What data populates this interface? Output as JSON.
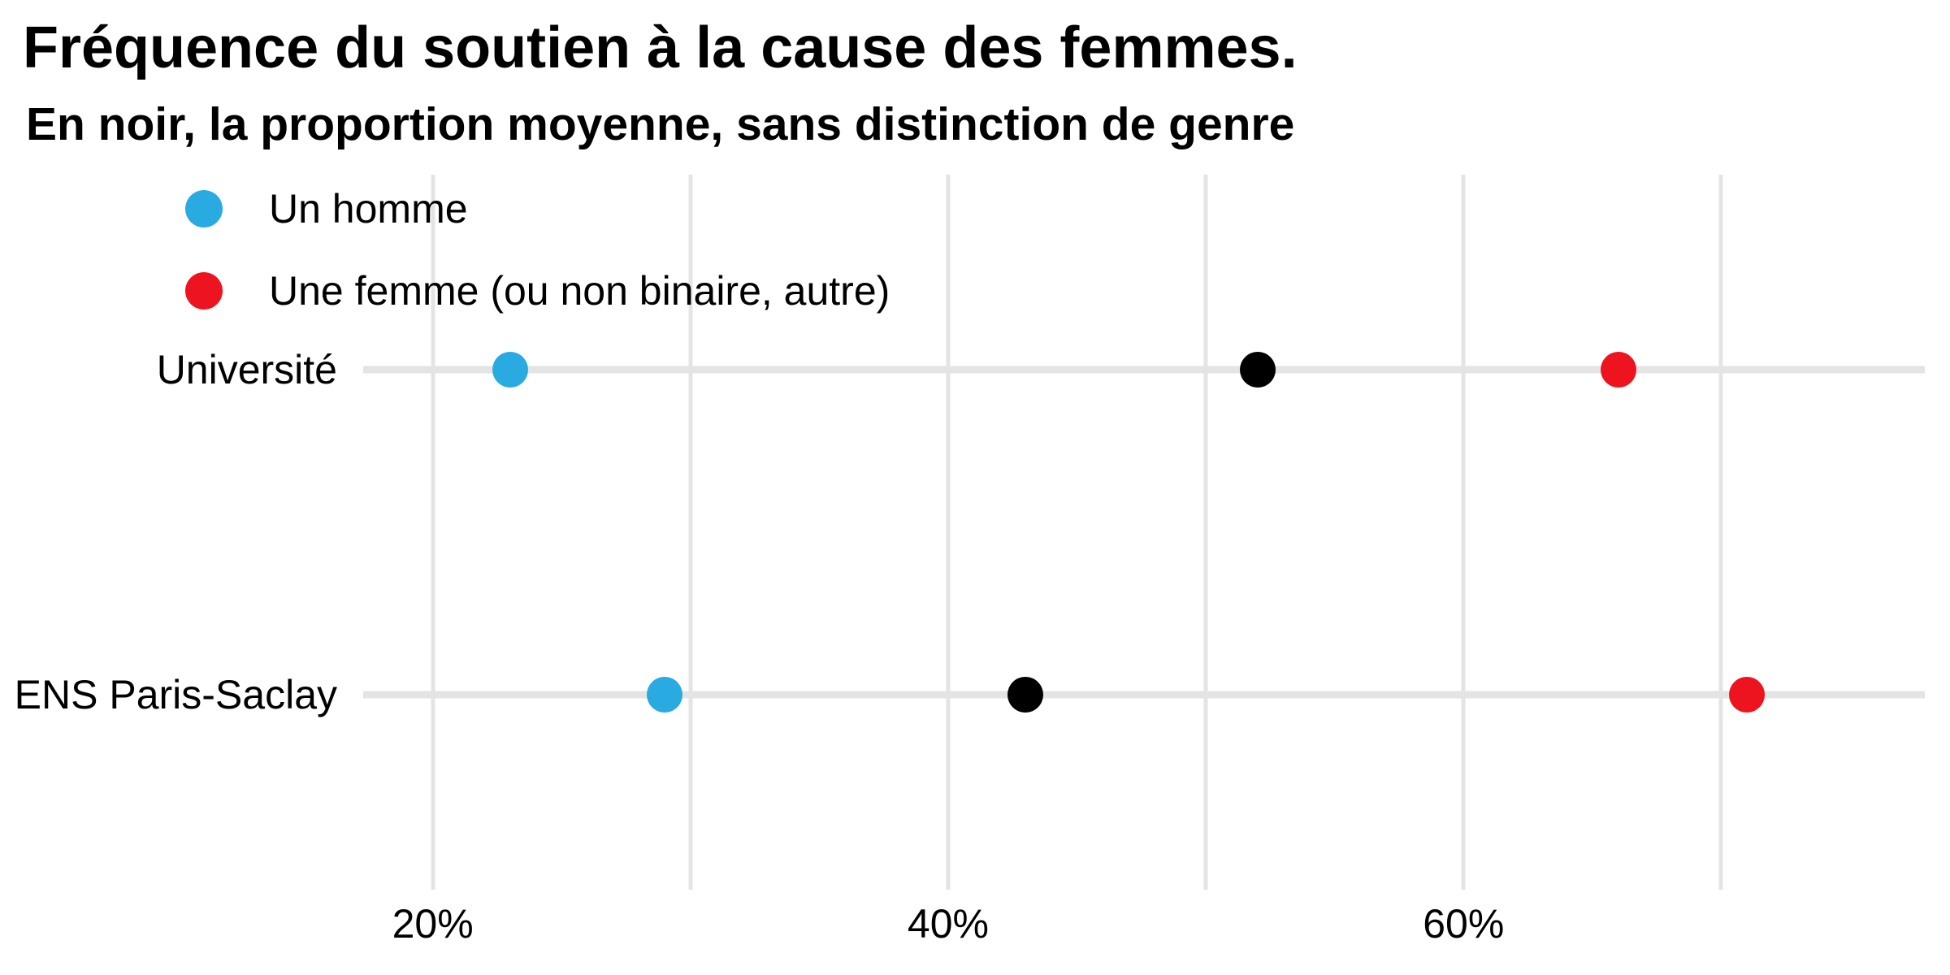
{
  "chart_data": {
    "type": "scatter",
    "title": "Fréquence du soutien à la cause des femmes.",
    "subtitle": "En noir, la proportion moyenne, sans distinction de genre",
    "categories": [
      "Université",
      "ENS Paris-Saclay"
    ],
    "series": [
      {
        "name": "Un homme",
        "color": "#29abe2",
        "values": [
          23,
          29
        ]
      },
      {
        "name": "Proportion moyenne (en noir)",
        "color": "#000000",
        "values": [
          52,
          43
        ]
      },
      {
        "name": "Une femme (ou non binaire, autre)",
        "color": "#ee141f",
        "values": [
          66,
          71
        ]
      }
    ],
    "x_unit": "%",
    "xlim": [
      17.3,
      77.9
    ],
    "x_gridlines": [
      20,
      30,
      40,
      50,
      60,
      70
    ],
    "x_ticks": [
      {
        "value": 20,
        "label": "20%"
      },
      {
        "value": 40,
        "label": "40%"
      },
      {
        "value": 60,
        "label": "60%"
      }
    ],
    "grid": "on",
    "legend_position": "inside-top-left",
    "legend": [
      {
        "label": "Un homme",
        "color": "#29abe2"
      },
      {
        "label": "Une femme (ou non binaire, autre)",
        "color": "#ee141f"
      }
    ],
    "colors": {
      "background": "#ffffff",
      "gridline": "#e4e4e4",
      "text": "#000000",
      "blue": "#29abe2",
      "red": "#ee141f",
      "black": "#000000"
    }
  }
}
